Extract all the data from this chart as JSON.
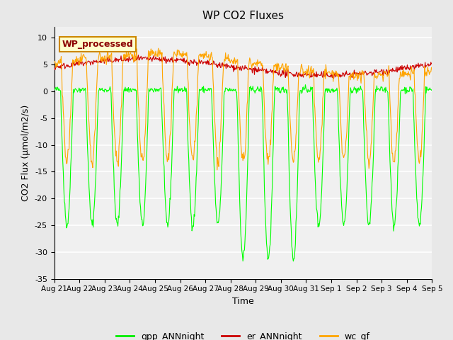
{
  "title": "WP CO2 Fluxes",
  "xlabel": "Time",
  "ylabel": "CO2 Flux (μmol/m2/s)",
  "ylim": [
    -35,
    12
  ],
  "yticks": [
    -35,
    -30,
    -25,
    -20,
    -15,
    -10,
    -5,
    0,
    5,
    10
  ],
  "bg_color": "#e8e8e8",
  "plot_bg_color": "#f0f0f0",
  "grid_color": "white",
  "n_days": 15,
  "gpp_color": "#00ff00",
  "er_color": "#cc0000",
  "wc_color": "#ffa500",
  "legend_label": "WP_processed",
  "legend_text_color": "#8b0000",
  "legend_box_color": "#ffffcc",
  "line_labels": [
    "gpp_ANNnight",
    "er_ANNnight",
    "wc_gf"
  ],
  "line_colors": [
    "#00ee00",
    "#cc0000",
    "#ffa500"
  ],
  "tick_labels": [
    "Aug 21",
    "Aug 22",
    "Aug 23",
    "Aug 24",
    "Aug 25",
    "Aug 26",
    "Aug 27",
    "Aug 28",
    "Aug 29",
    "Aug 30",
    "Aug 31",
    "Sep 1",
    "Sep 2",
    "Sep 3",
    "Sep 4",
    "Sep 5"
  ]
}
